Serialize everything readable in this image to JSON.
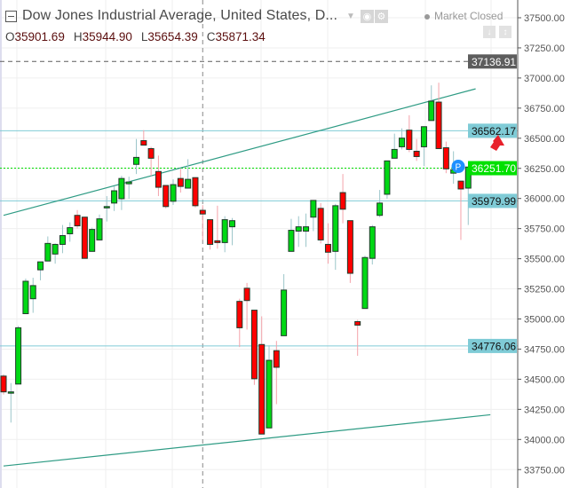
{
  "header": {
    "title": "Dow Jones Industrial Average, United States, D...",
    "market_status": "Market Closed",
    "ohlc": {
      "o_label": "O",
      "o": "35901.69",
      "h_label": "H",
      "h": "35944.90",
      "l_label": "L",
      "l": "35654.39",
      "c_label": "C",
      "c": "35871.34"
    }
  },
  "icons": [
    "collapse-icon",
    "chevron-down-icon",
    "eye-icon",
    "gear-icon",
    "arrow-down-icon",
    "arrows-vertical-icon",
    "p-marker-icon",
    "red-arrow-up-icon"
  ],
  "chart_data": {
    "type": "candlestick",
    "title": "Dow Jones Industrial Average, United States, D...",
    "ylim": [
      33650,
      37600
    ],
    "y_ticks": [
      37500,
      37250,
      37000,
      36750,
      36500,
      36250,
      36000,
      35750,
      35500,
      35250,
      35000,
      34750,
      34500,
      34250,
      34000,
      33750
    ],
    "y_tick_labels": [
      "37500.00",
      "37250.00",
      "37000.00",
      "36750.00",
      "36500.00",
      "36250.00",
      "36000.00",
      "35750.00",
      "35500.00",
      "35250.00",
      "35000.00",
      "34750.00",
      "34500.00",
      "34250.00",
      "34000.00",
      "33750.00"
    ],
    "grid": true,
    "colors": {
      "up": "#00d814",
      "down": "#ff0000",
      "border": "#1f3a2a",
      "up_wick": "#9cc6ca",
      "down_wick": "#f4a2aa",
      "level": "#7fcbd6",
      "trend": "#2e9b84"
    },
    "candles": [
      [
        34526,
        34541,
        34373,
        34395
      ],
      [
        34390,
        34468,
        34140,
        34395
      ],
      [
        34460,
        34942,
        34460,
        34927
      ],
      [
        35044,
        35335,
        35044,
        35313
      ],
      [
        35168,
        35342,
        35051,
        35277
      ],
      [
        35408,
        35474,
        35321,
        35474
      ],
      [
        35481,
        35685,
        35481,
        35627
      ],
      [
        35539,
        35627,
        35459,
        35619
      ],
      [
        35619,
        35780,
        35546,
        35692
      ],
      [
        35707,
        35802,
        35641,
        35758
      ],
      [
        35860,
        35904,
        35751,
        35773
      ],
      [
        35845,
        35845,
        35503,
        35503
      ],
      [
        35561,
        35758,
        35561,
        35743
      ],
      [
        35656,
        35867,
        35656,
        35831
      ],
      [
        35926,
        36020,
        35809,
        35933
      ],
      [
        35962,
        36100,
        35896,
        36064
      ],
      [
        35998,
        36188,
        35904,
        36166
      ],
      [
        36122,
        36181,
        35998,
        36137
      ],
      [
        36283,
        36494,
        36203,
        36341
      ],
      [
        36480,
        36567,
        36443,
        36443
      ],
      [
        36414,
        36429,
        36188,
        36334
      ],
      [
        36224,
        36356,
        36020,
        36093
      ],
      [
        36108,
        36108,
        35918,
        35933
      ],
      [
        35977,
        36159,
        35947,
        36115
      ],
      [
        36166,
        36246,
        36049,
        36100
      ],
      [
        36086,
        36326,
        36086,
        36159
      ],
      [
        36173,
        36173,
        35925,
        35940
      ],
      [
        35901.69,
        35944.9,
        35654.39,
        35871.34
      ],
      [
        35824,
        35824,
        35576,
        35619
      ],
      [
        35649,
        35940,
        35583,
        35634
      ],
      [
        35634,
        35853,
        35554,
        35824
      ],
      [
        35765,
        35838,
        35612,
        35816
      ],
      [
        35146,
        35168,
        34767,
        34927
      ],
      [
        35255,
        35299,
        34912,
        35153
      ],
      [
        35073,
        35073,
        34453,
        34504
      ],
      [
        34788,
        35022,
        34045,
        34045
      ],
      [
        34096,
        34781,
        34096,
        34657
      ],
      [
        34737,
        34818,
        34293,
        34599
      ],
      [
        34861,
        35372,
        34861,
        35240
      ],
      [
        35561,
        35831,
        35561,
        35736
      ],
      [
        35729,
        35853,
        35598,
        35765
      ],
      [
        35729,
        35875,
        35598,
        35765
      ],
      [
        35845,
        35984,
        35729,
        35984
      ],
      [
        35918,
        35962,
        35627,
        35656
      ],
      [
        35619,
        35794,
        35459,
        35554
      ],
      [
        35561,
        35955,
        35408,
        35940
      ],
      [
        36049,
        36203,
        35794,
        35911
      ],
      [
        35816,
        35816,
        35299,
        35379
      ],
      [
        34978,
        34993,
        34694,
        34949
      ],
      [
        35087,
        35525,
        35087,
        35510
      ],
      [
        35503,
        35780,
        35452,
        35765
      ],
      [
        35860,
        36071,
        35845,
        35962
      ],
      [
        36035,
        36312,
        35998,
        36312
      ],
      [
        36334,
        36538,
        36334,
        36407
      ],
      [
        36429,
        36582,
        36407,
        36501
      ],
      [
        36567,
        36691,
        36385,
        36407
      ],
      [
        36392,
        36494,
        36312,
        36348
      ],
      [
        36429,
        36596,
        36268,
        36596
      ],
      [
        36647,
        36939,
        36647,
        36808
      ],
      [
        36800,
        36961,
        36414,
        36414
      ],
      [
        36421,
        36472,
        36210,
        36246
      ],
      [
        36210,
        36392,
        36122,
        36239
      ],
      [
        36144,
        36144,
        35656,
        36079
      ],
      [
        36086,
        36261,
        35780,
        36261
      ]
    ],
    "price_levels": [
      {
        "value": 37136.91,
        "label": "37136.91",
        "style": "dashed",
        "color": "#5d5d5d"
      },
      {
        "value": 36562.17,
        "label": "36562.17",
        "style": "solid",
        "color": "#7fcbd6"
      },
      {
        "value": 36251.7,
        "label": "36251.70",
        "style": "dotted",
        "color": "#00dd00"
      },
      {
        "value": 35979.99,
        "label": "35979.99",
        "style": "solid",
        "color": "#7fcbd6"
      },
      {
        "value": 34776.06,
        "label": "34776.06",
        "style": "solid",
        "color": "#7fcbd6"
      }
    ],
    "trend_lines": [
      {
        "from": [
          0,
          35860
        ],
        "to": [
          64,
          36910
        ]
      },
      {
        "from": [
          0,
          33780
        ],
        "to": [
          66,
          34205
        ]
      }
    ],
    "crosshair_candle": 28
  }
}
